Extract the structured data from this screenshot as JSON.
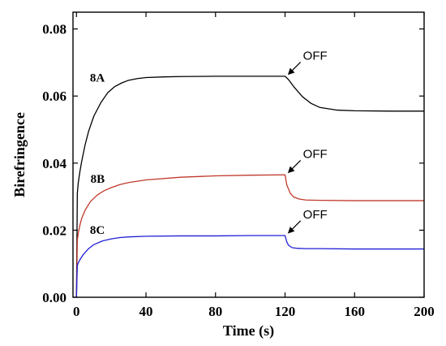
{
  "chart_data": {
    "type": "line",
    "title": "",
    "xlabel": "Time (s)",
    "ylabel": "Birefringence",
    "xlim": [
      -2,
      200
    ],
    "ylim": [
      0,
      0.085
    ],
    "xticks": [
      0,
      40,
      80,
      120,
      160,
      200
    ],
    "xtick_labels": [
      "0",
      "40",
      "80",
      "120",
      "160",
      "200"
    ],
    "yticks": [
      0,
      0.02,
      0.04,
      0.06,
      0.08
    ],
    "ytick_labels": [
      "0.00",
      "0.02",
      "0.04",
      "0.06",
      "0.08"
    ],
    "grid": false,
    "legend": "none",
    "series": [
      {
        "name": "8A",
        "color": "#000000",
        "x": [
          0,
          0.5,
          1,
          2,
          3,
          5,
          7,
          10,
          14,
          18,
          22,
          26,
          30,
          35,
          40,
          50,
          60,
          80,
          100,
          120,
          122,
          125,
          130,
          135,
          140,
          150,
          160,
          180,
          200
        ],
        "y": [
          0,
          0.031,
          0.034,
          0.0375,
          0.0405,
          0.0455,
          0.0495,
          0.054,
          0.058,
          0.061,
          0.0628,
          0.0639,
          0.0647,
          0.0652,
          0.0655,
          0.0657,
          0.0658,
          0.0659,
          0.0659,
          0.0659,
          0.0649,
          0.0628,
          0.0598,
          0.0578,
          0.0566,
          0.0558,
          0.0556,
          0.0555,
          0.0555
        ]
      },
      {
        "name": "8B",
        "color": "#c0392b",
        "x": [
          0,
          0.5,
          1,
          2,
          3,
          5,
          8,
          12,
          16,
          20,
          25,
          30,
          40,
          60,
          80,
          100,
          120,
          121,
          123,
          125,
          128,
          132,
          140,
          160,
          200
        ],
        "y": [
          0,
          0.017,
          0.019,
          0.0215,
          0.0235,
          0.026,
          0.0285,
          0.0305,
          0.0318,
          0.0327,
          0.0336,
          0.0342,
          0.035,
          0.0358,
          0.0362,
          0.0364,
          0.0365,
          0.0335,
          0.031,
          0.0299,
          0.0293,
          0.029,
          0.0289,
          0.0288,
          0.0288
        ]
      },
      {
        "name": "8C",
        "color": "#1f1fd6",
        "x": [
          0,
          0.5,
          1,
          2,
          4,
          7,
          10,
          15,
          20,
          25,
          30,
          40,
          60,
          80,
          100,
          120,
          121,
          122,
          124,
          127,
          132,
          140,
          160,
          200
        ],
        "y": [
          0,
          0.0095,
          0.0102,
          0.0112,
          0.0128,
          0.0145,
          0.0157,
          0.0168,
          0.0174,
          0.0178,
          0.018,
          0.0182,
          0.0183,
          0.0183,
          0.0184,
          0.0184,
          0.0165,
          0.0155,
          0.0148,
          0.0146,
          0.0145,
          0.0145,
          0.0144,
          0.0144
        ]
      }
    ],
    "annotations": [
      {
        "text": "OFF",
        "series": "8A",
        "arrow_tip": [
          121,
          0.066
        ]
      },
      {
        "text": "OFF",
        "series": "8B",
        "arrow_tip": [
          121,
          0.0367
        ]
      },
      {
        "text": "OFF",
        "series": "8C",
        "arrow_tip": [
          121,
          0.0187
        ]
      }
    ]
  }
}
